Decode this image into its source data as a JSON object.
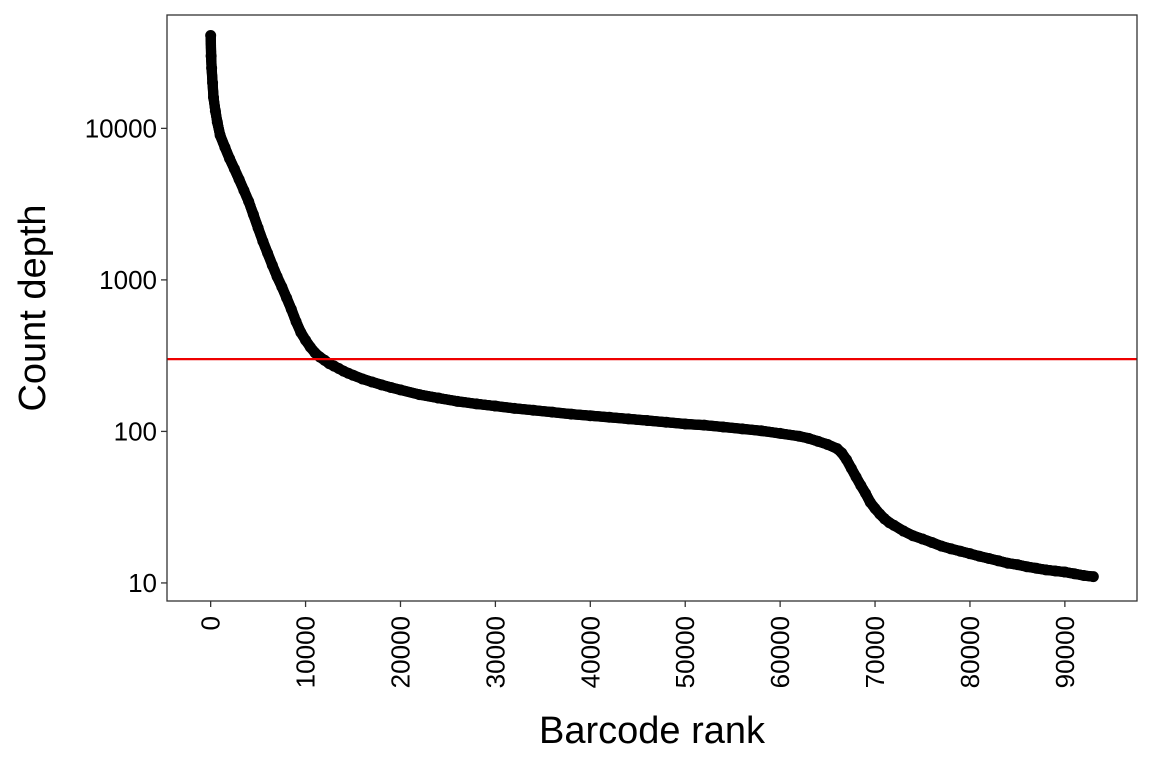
{
  "chart_data": {
    "type": "scatter",
    "title": "",
    "xlabel": "Barcode rank",
    "ylabel": "Count depth",
    "xlim": [
      -4600,
      97600
    ],
    "ylim": [
      7.6,
      56000
    ],
    "yscale": "log10",
    "x_ticks": [
      {
        "value": 0,
        "label": "0"
      },
      {
        "value": 10000,
        "label": "10000"
      },
      {
        "value": 20000,
        "label": "20000"
      },
      {
        "value": 30000,
        "label": "30000"
      },
      {
        "value": 40000,
        "label": "40000"
      },
      {
        "value": 50000,
        "label": "50000"
      },
      {
        "value": 60000,
        "label": "60000"
      },
      {
        "value": 70000,
        "label": "70000"
      },
      {
        "value": 80000,
        "label": "80000"
      },
      {
        "value": 90000,
        "label": "90000"
      }
    ],
    "y_ticks": [
      {
        "value": 10,
        "label": "10"
      },
      {
        "value": 100,
        "label": "100"
      },
      {
        "value": 1000,
        "label": "1000"
      },
      {
        "value": 10000,
        "label": "10000"
      }
    ],
    "threshold": {
      "value": 300,
      "color": "#ee0000"
    },
    "point_color": "#000000",
    "grid": false,
    "series": [
      {
        "x": [
          1,
          50,
          100,
          200,
          300,
          500,
          700,
          1000,
          1500,
          2000,
          2500,
          3000,
          3500,
          4000,
          4500,
          5000,
          5500,
          6000,
          6500,
          7000,
          7500,
          8000,
          8500,
          9000,
          9500,
          10000,
          10500,
          11000,
          11500,
          12000,
          12500,
          13000,
          13500,
          14000,
          14500,
          15000,
          16000,
          17000,
          18000,
          19000,
          20000,
          22000,
          24000,
          26000,
          28000,
          30000,
          32000,
          34000,
          36000,
          38000,
          40000,
          42000,
          44000,
          46000,
          48000,
          50000,
          52000,
          54000,
          56000,
          58000,
          60000,
          62000,
          63000,
          64000,
          65000,
          66000,
          66500,
          67000,
          67500,
          68000,
          68500,
          69000,
          69500,
          70000,
          70500,
          71000,
          71500,
          72000,
          73000,
          74000,
          75000,
          76000,
          77000,
          78000,
          79000,
          80000,
          81000,
          82000,
          83000,
          84000,
          85000,
          86000,
          87000,
          88000,
          89000,
          90000,
          91000,
          92000,
          93000
        ],
        "y": [
          41000,
          30000,
          25000,
          20000,
          16000,
          13000,
          11000,
          9000,
          7500,
          6300,
          5400,
          4600,
          3900,
          3300,
          2700,
          2200,
          1800,
          1500,
          1250,
          1050,
          900,
          760,
          640,
          530,
          450,
          400,
          360,
          330,
          310,
          295,
          280,
          270,
          260,
          250,
          242,
          235,
          222,
          212,
          203,
          195,
          188,
          175,
          166,
          158,
          152,
          147,
          142,
          138,
          134,
          130,
          127,
          124,
          121,
          118,
          115,
          112,
          110,
          107,
          104,
          101,
          97,
          93,
          90,
          86,
          82,
          77,
          72,
          65,
          57,
          50,
          44,
          39,
          34,
          31,
          28.5,
          26.5,
          25,
          24,
          22,
          20.5,
          19.5,
          18.5,
          17.5,
          16.8,
          16.2,
          15.6,
          15,
          14.5,
          14,
          13.5,
          13.2,
          12.8,
          12.5,
          12.2,
          12,
          11.8,
          11.5,
          11.2,
          11
        ]
      }
    ]
  }
}
